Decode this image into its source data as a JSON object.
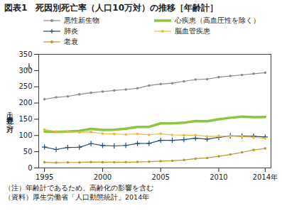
{
  "chart_data": {
    "type": "line",
    "title": "図表1　死因別死亡率（人口10万対）の推移［年齢計］",
    "y_label": "死亡率（人口１０万対）",
    "y_unit": "人",
    "notes": [
      "（注）年齢計であるため、高齢化の影響を含む",
      "（資料）厚生労働省「人口動態統計」2014年"
    ],
    "x": [
      1995,
      1996,
      1997,
      1998,
      1999,
      2000,
      2001,
      2002,
      2003,
      2004,
      2005,
      2006,
      2007,
      2008,
      2009,
      2010,
      2011,
      2012,
      2013,
      2014
    ],
    "series": [
      {
        "name": "悪性新生物",
        "color": "#8c8c8c",
        "marker": "circle",
        "values": [
          211.6,
          217.5,
          220.4,
          226.7,
          231.6,
          235.2,
          238.8,
          241.7,
          245.4,
          253.9,
          258.3,
          261.0,
          266.9,
          272.3,
          273.5,
          279.7,
          283.2,
          286.6,
          290.3,
          293.5
        ]
      },
      {
        "name": "心疾患（高血圧性を除く）",
        "color": "#8cc63f",
        "values": [
          112.0,
          110.8,
          112.2,
          114.3,
          120.4,
          116.8,
          117.8,
          121.0,
          126.5,
          126.5,
          137.2,
          137.2,
          139.2,
          144.4,
          143.7,
          149.8,
          154.5,
          157.9,
          156.5,
          157.0
        ]
      },
      {
        "name": "肺炎",
        "color": "#1f4e79",
        "marker": "plus",
        "values": [
          64.1,
          56.9,
          63.1,
          63.8,
          74.9,
          69.2,
          67.8,
          69.4,
          75.3,
          75.7,
          85.0,
          85.0,
          87.4,
          91.6,
          89.0,
          94.1,
          98.9,
          98.4,
          97.8,
          95.4
        ]
      },
      {
        "name": "脳血管疾患",
        "color": "#f2b53a",
        "marker": "circle",
        "values": [
          117.9,
          112.6,
          111.0,
          110.0,
          110.8,
          105.5,
          104.7,
          103.4,
          104.7,
          102.3,
          105.3,
          101.7,
          100.8,
          100.9,
          97.2,
          97.7,
          98.2,
          96.5,
          94.1,
          91.1
        ]
      },
      {
        "name": "老衰",
        "color": "#b89a2e",
        "marker": "circle",
        "values": [
          17.3,
          16.3,
          16.9,
          17.1,
          18.2,
          17.6,
          17.6,
          17.9,
          18.5,
          19.3,
          20.9,
          22.0,
          24.4,
          28.6,
          30.7,
          35.9,
          41.4,
          48.2,
          55.5,
          60.1
        ]
      }
    ],
    "xlim": [
      1994.5,
      2014.5
    ],
    "xticks": [
      1995,
      2000,
      2005,
      2010,
      {
        "value": 2014,
        "label": "2014年"
      }
    ],
    "ylim": [
      0,
      350
    ],
    "yticks": [
      0,
      50,
      100,
      150,
      200,
      250,
      300,
      350
    ],
    "grid": false,
    "legend": "top"
  }
}
